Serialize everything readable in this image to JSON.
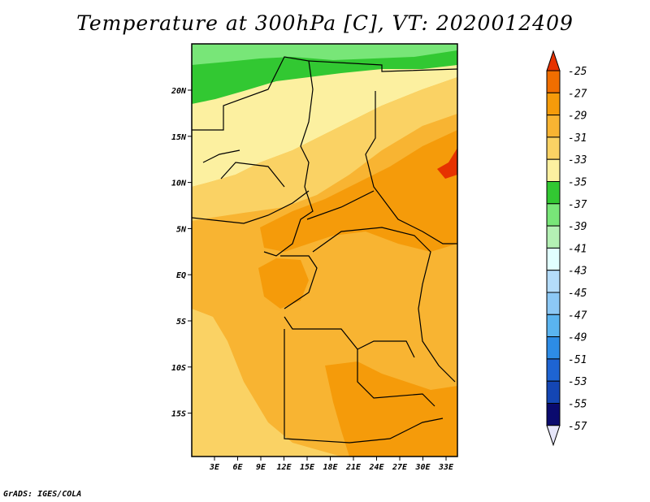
{
  "title": "Temperature at 300hPa [C], VT: 2020012409",
  "credit": "GrADS: IGES/COLA",
  "map": {
    "projection": "lat-lon",
    "lat_ticks": [
      "20N",
      "15N",
      "10N",
      "5N",
      "EQ",
      "5S",
      "10S",
      "15S"
    ],
    "lon_ticks": [
      "3E",
      "6E",
      "9E",
      "12E",
      "15E",
      "18E",
      "21E",
      "24E",
      "27E",
      "30E",
      "33E"
    ]
  },
  "colorbar": {
    "labels": [
      "-25",
      "-27",
      "-29",
      "-31",
      "-33",
      "-35",
      "-37",
      "-39",
      "-41",
      "-43",
      "-45",
      "-47",
      "-49",
      "-51",
      "-53",
      "-55",
      "-57"
    ],
    "colors": [
      "#e63200",
      "#f06e00",
      "#f59b0a",
      "#f8b432",
      "#fad264",
      "#fcf0a0",
      "#32c832",
      "#78e678",
      "#b4f0b4",
      "#e1ffff",
      "#b4dcfa",
      "#8cc8f5",
      "#5ab4f0",
      "#2d8ce6",
      "#1e64d2",
      "#1446b4",
      "#0a0a6e"
    ]
  },
  "regions": [
    {
      "name": "green-band-north",
      "color": "#32c832"
    },
    {
      "name": "light-green-top",
      "color": "#78e678"
    },
    {
      "name": "pale-yellow-sahara",
      "color": "#fcf0a0"
    },
    {
      "name": "yellow-sahel",
      "color": "#fad264"
    },
    {
      "name": "orange-central",
      "color": "#f8b432"
    },
    {
      "name": "deep-orange-core",
      "color": "#f59b0a"
    },
    {
      "name": "red-east",
      "color": "#f06e00"
    }
  ]
}
